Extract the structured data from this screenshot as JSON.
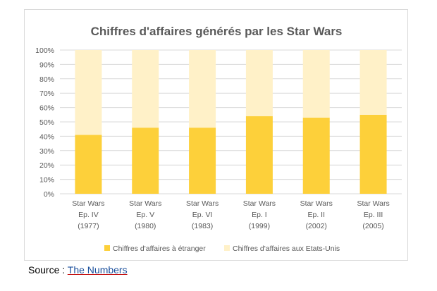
{
  "chart_data": {
    "type": "bar",
    "stacked": true,
    "percent_stacked": true,
    "title": "Chiffres d'affaires générés par les Star Wars",
    "categories": [
      [
        "Star Wars",
        "Ep. IV",
        "(1977)"
      ],
      [
        "Star Wars",
        "Ep. V",
        "(1980)"
      ],
      [
        "Star Wars",
        "Ep. VI",
        "(1983)"
      ],
      [
        "Star Wars",
        "Ep. I",
        "(1999)"
      ],
      [
        "Star Wars",
        "Ep. II",
        "(2002)"
      ],
      [
        "Star Wars",
        "Ep. III",
        "(2005)"
      ]
    ],
    "series": [
      {
        "name": "Chiffres d'affaires à étranger",
        "color": "#fdd03a",
        "values": [
          41,
          46,
          46,
          54,
          53,
          55
        ]
      },
      {
        "name": "Chiffres d'affaires aux Etats-Unis",
        "color": "#fff1c8",
        "values": [
          59,
          54,
          54,
          46,
          47,
          45
        ]
      }
    ],
    "y_ticks": [
      "0%",
      "10%",
      "20%",
      "30%",
      "40%",
      "50%",
      "60%",
      "70%",
      "80%",
      "90%",
      "100%"
    ],
    "ylim": [
      0,
      100
    ],
    "grid": true,
    "legend_position": "bottom"
  },
  "source": {
    "prefix": "Source : ",
    "link_text": "The Numbers"
  }
}
